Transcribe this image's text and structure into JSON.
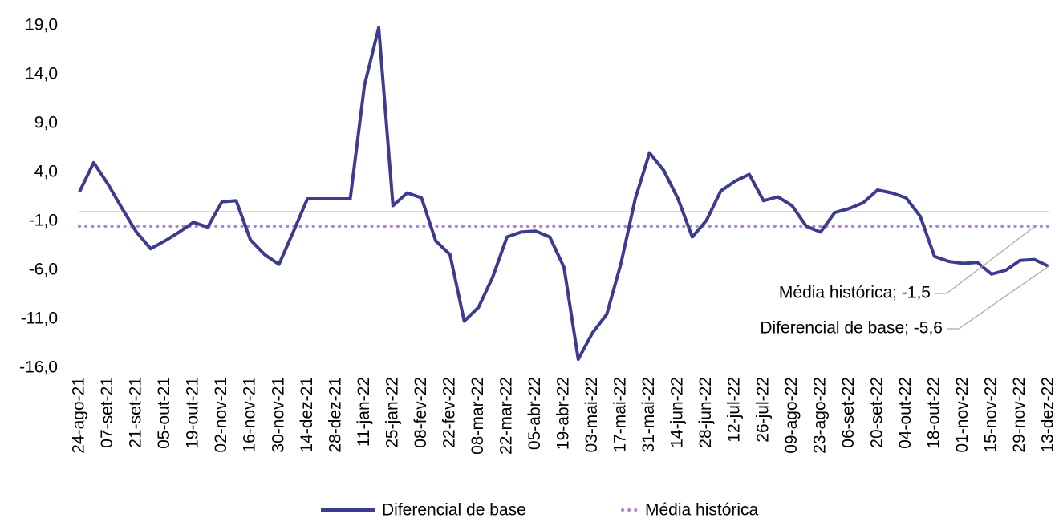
{
  "chart_data": {
    "type": "line",
    "categories": [
      "24-ago-21",
      null,
      "07-set-21",
      null,
      "21-set-21",
      null,
      "05-out-21",
      null,
      "19-out-21",
      null,
      "02-nov-21",
      null,
      "16-nov-21",
      null,
      "30-nov-21",
      null,
      "14-dez-21",
      null,
      "28-dez-21",
      null,
      "11-jan-22",
      null,
      "25-jan-22",
      null,
      "08-fev-22",
      null,
      "22-fev-22",
      null,
      "08-mar-22",
      null,
      "22-mar-22",
      null,
      "05-abr-22",
      null,
      "19-abr-22",
      null,
      "03-mai-22",
      null,
      "17-mai-22",
      null,
      "31-mai-22",
      null,
      "14-jun-22",
      null,
      "28-jun-22",
      null,
      "12-jul-22",
      null,
      "26-jul-22",
      null,
      "09-ago-22",
      null,
      "23-ago-22",
      null,
      "06-set-22",
      null,
      "20-set-22",
      null,
      "04-out-22",
      null,
      "18-out-22",
      null,
      "01-nov-22",
      null,
      "15-nov-22",
      null,
      "29-nov-22",
      null,
      "13-dez-22"
    ],
    "series": [
      {
        "name": "Diferencial de base",
        "color": "#3c3b8e",
        "style": "solid",
        "values": [
          2.0,
          5.0,
          2.8,
          0.3,
          -2.1,
          -3.8,
          -3.0,
          -2.1,
          -1.1,
          -1.6,
          1.0,
          1.1,
          -2.9,
          -4.4,
          -5.4,
          -2.1,
          1.3,
          1.3,
          1.3,
          1.3,
          12.9,
          18.8,
          0.6,
          1.9,
          1.4,
          -3.0,
          -4.4,
          -11.2,
          -9.8,
          -6.7,
          -2.6,
          -2.1,
          -2.0,
          -2.6,
          -5.7,
          -15.1,
          -12.4,
          -10.5,
          -5.3,
          1.3,
          6.0,
          4.2,
          1.3,
          -2.6,
          -0.9,
          2.1,
          3.1,
          3.8,
          1.1,
          1.5,
          0.6,
          -1.5,
          -2.1,
          -0.1,
          0.3,
          0.9,
          2.2,
          1.9,
          1.4,
          -0.5,
          -4.6,
          -5.1,
          -5.3,
          -5.2,
          -6.4,
          -6.0,
          -5.0,
          -4.9,
          -5.6
        ],
        "value_labels": [
          null,
          null,
          null,
          null,
          null,
          null,
          null,
          null,
          null,
          null,
          null,
          null,
          null,
          null,
          null,
          null,
          null,
          null,
          null,
          null,
          null,
          null,
          null,
          null,
          null,
          null,
          null,
          null,
          null,
          null,
          null,
          null,
          null,
          null,
          null,
          null,
          null,
          null,
          null,
          null,
          null,
          null,
          null,
          null,
          null,
          null,
          null,
          null,
          null,
          null,
          null,
          null,
          null,
          null,
          null,
          null,
          null,
          null,
          null,
          null,
          null,
          null,
          null,
          null,
          null,
          null,
          null,
          null,
          "Diferencial de base; -5,6"
        ]
      },
      {
        "name": "Média histórica",
        "color": "#b27fdc",
        "style": "dotted",
        "values": [
          -1.5,
          -1.5,
          -1.5,
          -1.5,
          -1.5,
          -1.5,
          -1.5,
          -1.5,
          -1.5,
          -1.5,
          -1.5,
          -1.5,
          -1.5,
          -1.5,
          -1.5,
          -1.5,
          -1.5,
          -1.5,
          -1.5,
          -1.5,
          -1.5,
          -1.5,
          -1.5,
          -1.5,
          -1.5,
          -1.5,
          -1.5,
          -1.5,
          -1.5,
          -1.5,
          -1.5,
          -1.5,
          -1.5,
          -1.5,
          -1.5,
          -1.5,
          -1.5,
          -1.5,
          -1.5,
          -1.5,
          -1.5,
          -1.5,
          -1.5,
          -1.5,
          -1.5,
          -1.5,
          -1.5,
          -1.5,
          -1.5,
          -1.5,
          -1.5,
          -1.5,
          -1.5,
          -1.5,
          -1.5,
          -1.5,
          -1.5,
          -1.5,
          -1.5,
          -1.5,
          -1.5,
          -1.5,
          -1.5,
          -1.5,
          -1.5,
          -1.5,
          -1.5,
          -1.5,
          -1.5
        ],
        "value_labels": [
          null,
          null,
          null,
          null,
          null,
          null,
          null,
          null,
          null,
          null,
          null,
          null,
          null,
          null,
          null,
          null,
          null,
          null,
          null,
          null,
          null,
          null,
          null,
          null,
          null,
          null,
          null,
          null,
          null,
          null,
          null,
          null,
          null,
          null,
          null,
          null,
          null,
          null,
          null,
          null,
          null,
          null,
          null,
          null,
          null,
          null,
          null,
          null,
          null,
          null,
          null,
          null,
          null,
          null,
          null,
          null,
          null,
          null,
          null,
          null,
          null,
          null,
          null,
          null,
          null,
          null,
          null,
          null,
          "Média histórica; -1,5"
        ]
      }
    ],
    "ylim": [
      -16,
      19
    ],
    "yticks": [
      {
        "value": 19,
        "label": "19,0"
      },
      {
        "value": 14,
        "label": "14,0"
      },
      {
        "value": 9,
        "label": "9,0"
      },
      {
        "value": 4,
        "label": "4,0"
      },
      {
        "value": -1,
        "label": "-1,0"
      },
      {
        "value": -6,
        "label": "-6,0"
      },
      {
        "value": -11,
        "label": "-11,0"
      },
      {
        "value": -16,
        "label": "-16,0"
      }
    ],
    "grid": false,
    "legend": "bottom"
  }
}
